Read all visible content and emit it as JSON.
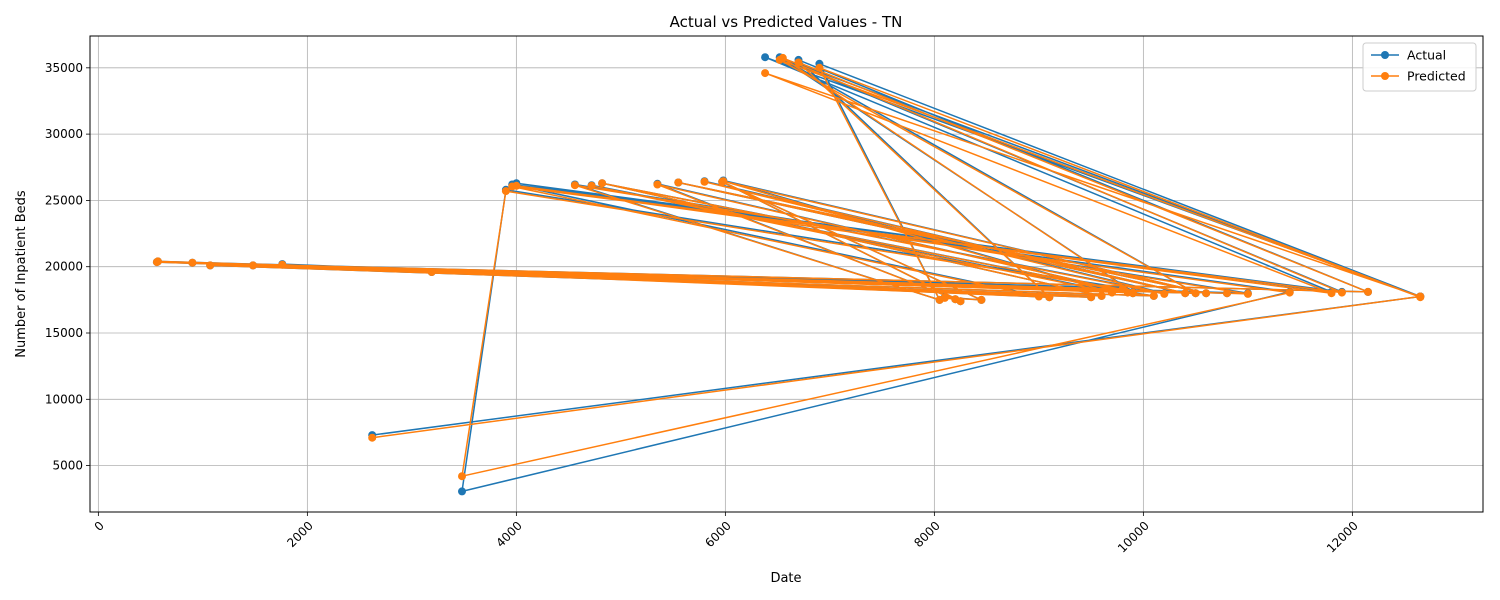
{
  "chart_data": {
    "type": "line",
    "title": "Actual vs Predicted Values - TN",
    "xlabel": "Date",
    "ylabel": "Number of Inpatient Beds",
    "xlim": [
      -80,
      13250
    ],
    "ylim": [
      1500,
      37400
    ],
    "xticks": [
      0,
      2000,
      4000,
      6000,
      8000,
      10000,
      12000
    ],
    "xtick_labels": [
      "0",
      "2000",
      "4000",
      "6000",
      "8000",
      "10000",
      "12000"
    ],
    "yticks": [
      5000,
      10000,
      15000,
      20000,
      25000,
      30000,
      35000
    ],
    "ytick_labels": [
      "5000",
      "10000",
      "15000",
      "20000",
      "25000",
      "30000",
      "35000"
    ],
    "grid": true,
    "legend_position": "upper right",
    "series": [
      {
        "name": "Actual",
        "color": "#1f77b4",
        "x": [
          2620,
          12650,
          6380,
          11800,
          4000,
          11400,
          3480,
          3900,
          9800,
          570,
          9850,
          10100,
          560,
          12150,
          6700,
          9100,
          1760,
          9500,
          3190,
          9000,
          3960,
          11900,
          6550,
          9900,
          900,
          11000,
          4560,
          8050,
          6900,
          12650,
          6520,
          10500,
          1480,
          10800,
          1070,
          9600,
          4820,
          10200,
          5800,
          10400,
          5550,
          10600,
          5980,
          9700,
          4720,
          9900,
          5350,
          8250,
          5970,
          8450,
          8100,
          8200
        ],
        "y": [
          7300,
          17750,
          35800,
          18100,
          26300,
          18100,
          3050,
          25800,
          18400,
          20400,
          18100,
          17800,
          20350,
          18100,
          35600,
          17700,
          20200,
          17700,
          19600,
          17800,
          26200,
          18100,
          35650,
          18100,
          20300,
          18000,
          26200,
          17500,
          35300,
          17750,
          35800,
          18000,
          20100,
          18000,
          20100,
          17800,
          26300,
          18000,
          26450,
          18000,
          26350,
          18000,
          26500,
          18100,
          26150,
          18000,
          26250,
          17400,
          26400,
          17500,
          17700,
          17550
        ]
      },
      {
        "name": "Predicted",
        "color": "#ff7f0e",
        "x": [
          2620,
          12650,
          6380,
          11800,
          4000,
          11400,
          3480,
          3900,
          9800,
          570,
          9850,
          10100,
          560,
          12150,
          6700,
          9100,
          1760,
          9500,
          3190,
          9000,
          3960,
          11900,
          6550,
          9900,
          900,
          11000,
          4560,
          8050,
          6900,
          12650,
          6520,
          10500,
          1480,
          10800,
          1070,
          9600,
          4820,
          10200,
          5800,
          10400,
          5550,
          10600,
          5980,
          9700,
          4720,
          9900,
          5350,
          8250,
          5970,
          8450,
          8100,
          8200
        ],
        "y": [
          7100,
          17750,
          34600,
          18000,
          26100,
          18050,
          4200,
          25700,
          18300,
          20400,
          18050,
          17800,
          20350,
          18100,
          35400,
          17700,
          20150,
          17700,
          19600,
          17750,
          26050,
          18050,
          35750,
          18050,
          20300,
          17950,
          26150,
          17500,
          35000,
          17700,
          35600,
          18000,
          20100,
          18000,
          20100,
          17800,
          26300,
          17950,
          26400,
          18000,
          26350,
          18000,
          26450,
          18050,
          26100,
          18000,
          26200,
          17400,
          26400,
          17500,
          17650,
          17550
        ]
      }
    ]
  }
}
